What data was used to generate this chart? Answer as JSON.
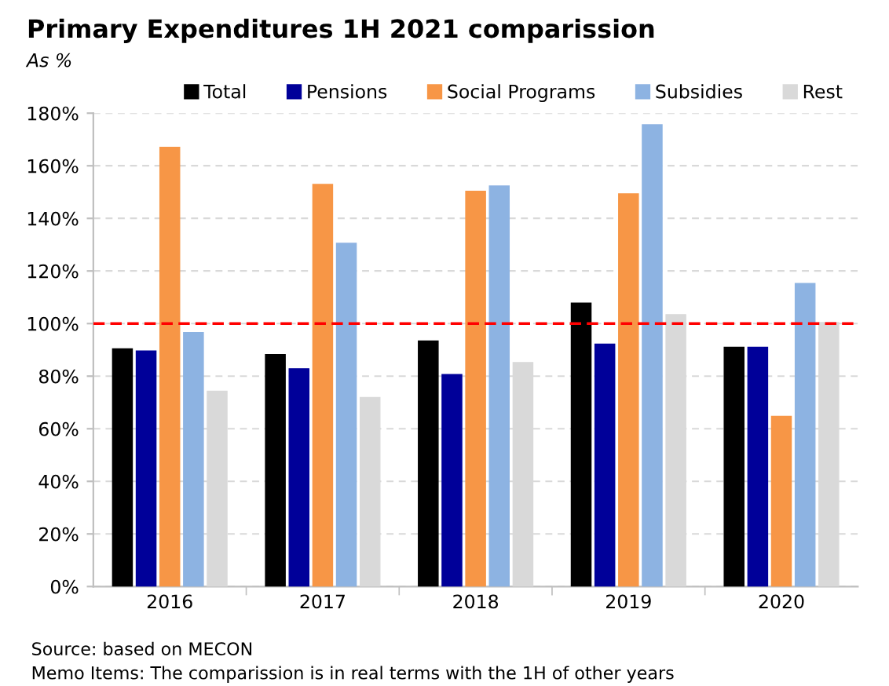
{
  "chart_data": {
    "type": "bar",
    "title": "Primary Expenditures 1H 2021 comparission",
    "subtitle": "As %",
    "categories": [
      "2016",
      "2017",
      "2018",
      "2019",
      "2020"
    ],
    "series": [
      {
        "name": "Total",
        "color": "#000000",
        "values": [
          90.4,
          88.2,
          93.4,
          107.8,
          91.0
        ]
      },
      {
        "name": "Pensions",
        "color": "#000099",
        "values": [
          89.6,
          82.8,
          80.6,
          92.2,
          91.0
        ]
      },
      {
        "name": "Social Programs",
        "color": "#f79646",
        "values": [
          167,
          152.9,
          150.3,
          149.3,
          64.7
        ]
      },
      {
        "name": "Subsidies",
        "color": "#8db3e2",
        "values": [
          96.6,
          130.5,
          152.3,
          175.6,
          115.2
        ]
      },
      {
        "name": "Rest",
        "color": "#d9d9d9",
        "values": [
          74.3,
          71.9,
          85.2,
          103.4,
          100.4
        ]
      }
    ],
    "ylim": [
      0,
      180
    ],
    "yticks": [
      {
        "value": 0,
        "label": "0%"
      },
      {
        "value": 20,
        "label": "20%"
      },
      {
        "value": 40,
        "label": "40%"
      },
      {
        "value": 60,
        "label": "60%"
      },
      {
        "value": 80,
        "label": "80%"
      },
      {
        "value": 100,
        "label": "100%"
      },
      {
        "value": 120,
        "label": "120%"
      },
      {
        "value": 140,
        "label": "140%"
      },
      {
        "value": 160,
        "label": "160%"
      },
      {
        "value": 180,
        "label": "180%"
      }
    ],
    "ref_lines": [
      {
        "axis": "y",
        "value": 100,
        "label": null,
        "color": "#ff0000",
        "line_style": "dashed"
      }
    ],
    "grid": "y",
    "legend": "top",
    "annotations": [
      "Source: based on MECON",
      "Memo Items: The comparission is in real terms with the 1H of other years"
    ]
  }
}
